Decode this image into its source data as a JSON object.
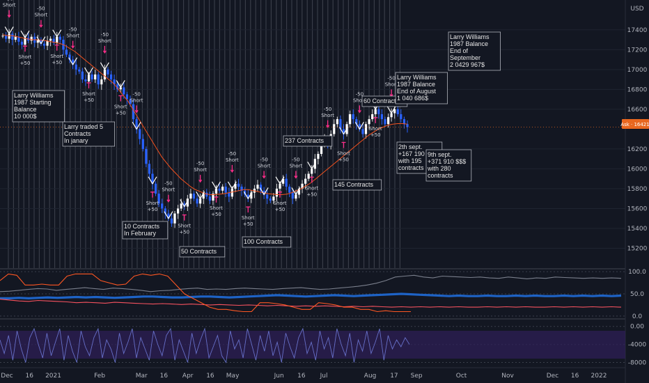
{
  "chart_data": [
    {
      "type": "line",
      "pane": "price",
      "title": "",
      "ylim": [
        15000,
        17700
      ],
      "y_ticks": [
        "17400",
        "17200",
        "17000",
        "16800",
        "16600",
        "16200",
        "16000",
        "15800",
        "15600",
        "15400",
        "15200"
      ],
      "y_top_label": "USD",
      "price_label": "Ask · 16421",
      "x_ticks": [
        "Dec",
        "16",
        "2021",
        "Feb",
        "Mar",
        "16",
        "Apr",
        "16",
        "May",
        "Jun",
        "16",
        "Jul",
        "Aug",
        "17",
        "Sep",
        "Oct",
        "Nov",
        "Dec",
        "16",
        "2022"
      ],
      "x_tick_days": [
        0,
        15,
        31,
        62,
        90,
        105,
        121,
        136,
        151,
        182,
        197,
        212,
        243,
        259,
        274,
        304,
        335,
        365,
        380,
        396
      ],
      "series": [
        {
          "values": [
            17340,
            17310,
            17360,
            17300,
            17330,
            17280,
            17250,
            17320,
            17290,
            17330,
            17270,
            17300,
            17260,
            17240,
            17290,
            17310,
            17270,
            17330,
            17300,
            17200,
            17150,
            17100,
            17050,
            17000,
            16980,
            16900,
            16880,
            16950,
            16900,
            16950,
            16850,
            16900,
            17000,
            16950,
            16900,
            16850,
            16800,
            16820,
            16750,
            16700,
            16650,
            16500,
            16400,
            16300,
            16200,
            16050,
            15950,
            15850,
            15750,
            15650,
            15600,
            15550,
            15500,
            15450,
            15550,
            15600,
            15650,
            15620,
            15700,
            15750,
            15700,
            15650,
            15700,
            15760,
            15720,
            15680,
            15750,
            15800,
            15780,
            15820,
            15760,
            15720,
            15800,
            15850,
            15820,
            15780,
            15740,
            15700,
            15760,
            15800,
            15840,
            15780,
            15740,
            15700,
            15680,
            15720,
            15800,
            15850,
            15900,
            15820,
            15760,
            15700,
            15740,
            15800,
            15850,
            15900,
            15950,
            16000,
            16100,
            16150,
            16250,
            16300,
            16250,
            16350,
            16450,
            16500,
            16400,
            16350,
            16450,
            16550,
            16500,
            16450,
            16400,
            16350,
            16450,
            16500,
            16550,
            16600,
            16550,
            16500,
            16450,
            16520,
            16560,
            16600,
            16550,
            16500,
            16450,
            16420
          ]
        },
        {
          "name": "",
          "values": [
            17350,
            17340,
            17340,
            17330,
            17320,
            17310,
            17300,
            17300,
            17295,
            17290,
            17280,
            17270,
            17260,
            17240,
            17210,
            17180,
            17140,
            17100,
            17060,
            17020,
            16980,
            16940,
            16900,
            16860,
            16800,
            16740,
            16680,
            16600,
            16520,
            16440,
            16360,
            16280,
            16200,
            16120,
            16060,
            16000,
            15950,
            15900,
            15860,
            15820,
            15790,
            15770,
            15750,
            15740,
            15740,
            15745,
            15750,
            15760,
            15770,
            15780,
            15790,
            15790,
            15780,
            15770,
            15760,
            15750,
            15745,
            15740,
            15740,
            15745,
            15760,
            15780,
            15800,
            15830,
            15860,
            15900,
            15940,
            15980,
            16020,
            16060,
            16100,
            16140,
            16180,
            16220,
            16260,
            16300,
            16340,
            16370,
            16400,
            16420,
            16440,
            16450,
            16455,
            16455,
            16450
          ]
        }
      ],
      "annotations": [
        [
          "Larry Williams",
          "1987 Starting",
          "Balance",
          "10 000$"
        ],
        [
          "Larry traded 5",
          "Contracts",
          "In janary"
        ],
        [
          "10 Contracts",
          "In February"
        ],
        [
          "50 Contracts"
        ],
        [
          "100 Contracts"
        ],
        [
          "237 Contracts"
        ],
        [
          "145 Contracts"
        ],
        [
          "60 Contracts"
        ],
        [
          "Larry Williams",
          "1987 Balance",
          "End of August",
          "1 040 686$"
        ],
        [
          "2th sept.",
          "+167 190 $$$",
          "with 195",
          "contracts"
        ],
        [
          "9th sept.",
          "+371 910 $$$",
          "with 280",
          "contracts"
        ],
        [
          "Larry Williams",
          "1987 Balance",
          "End of",
          "September",
          "2 0429 967$"
        ]
      ],
      "signal_labels": [
        "-50",
        "Short",
        "+50",
        "Short"
      ]
    },
    {
      "type": "line",
      "pane": "oscillator",
      "ylim": [
        -5,
        105
      ],
      "y_ticks": [
        "100.0",
        "50.0",
        "0.0"
      ],
      "series": [
        {
          "color": "#1e63c6",
          "values": [
            40,
            40,
            41,
            40,
            41,
            42,
            41,
            42,
            43,
            42,
            43,
            42,
            41,
            42,
            43,
            44,
            44,
            43,
            42,
            42,
            43,
            44,
            44,
            43,
            42,
            43,
            44,
            45,
            46,
            47,
            46,
            45,
            44,
            45,
            46,
            47,
            46,
            45,
            46,
            47,
            48,
            49,
            50,
            49,
            48,
            47,
            46,
            45,
            46,
            45,
            45,
            46,
            45,
            45,
            46,
            45,
            46,
            45,
            45,
            46,
            45,
            46,
            45,
            46,
            45,
            46
          ]
        },
        {
          "color": "#7a7f8c",
          "values": [
            55,
            56,
            58,
            60,
            62,
            61,
            58,
            60,
            62,
            64,
            62,
            60,
            63,
            62,
            60,
            58,
            55,
            57,
            58,
            60,
            62,
            63,
            60,
            61,
            60,
            62,
            63,
            62,
            61,
            60,
            62,
            63,
            64,
            62,
            60,
            61,
            63,
            65,
            67,
            70,
            74,
            80,
            88,
            90,
            92,
            88,
            86,
            90,
            89,
            88,
            87,
            88,
            86,
            85,
            88,
            86,
            84,
            86,
            85,
            88,
            87,
            86,
            85,
            86,
            85,
            86,
            85
          ]
        },
        {
          "color": "#f7525f",
          "values": [
            38,
            36,
            34,
            33,
            35,
            34,
            33,
            32,
            30,
            31,
            30,
            29,
            31,
            30,
            29,
            28,
            27,
            28,
            27,
            26,
            27,
            26,
            25,
            26,
            25,
            24,
            25,
            24,
            23,
            24,
            23,
            22,
            23,
            22,
            23,
            22,
            21,
            22,
            21,
            22,
            21,
            20,
            21,
            20,
            21,
            20,
            21,
            20,
            21,
            20,
            20,
            21,
            20,
            21,
            20,
            21,
            20,
            20,
            21,
            20,
            21,
            20,
            21,
            20,
            21,
            20
          ]
        },
        {
          "color": "#ff5722",
          "values": [
            80,
            95,
            92,
            70,
            70,
            72,
            70,
            70,
            90,
            95,
            95,
            95,
            80,
            75,
            70,
            72,
            90,
            95,
            92,
            95,
            90,
            70,
            50,
            40,
            30,
            20,
            15,
            15,
            12,
            10,
            10,
            30,
            30,
            28,
            25,
            20,
            15,
            15,
            30,
            28,
            25,
            20,
            20,
            15,
            15,
            10,
            12,
            10,
            10,
            10
          ]
        }
      ]
    },
    {
      "type": "line",
      "pane": "momentum",
      "ylim": [
        -9000,
        1500
      ],
      "y_ticks": [
        "0.00",
        "-4000",
        "-8000"
      ],
      "series": [
        {
          "color": "#6770c9",
          "values": [
            -3000,
            -6000,
            -2000,
            -7500,
            -1000,
            -5000,
            -8000,
            -2500,
            -500,
            -4000,
            -7000,
            -1500,
            -6500,
            -3500,
            -500,
            -7500,
            -2000,
            -5500,
            -8000,
            -1000,
            -4500,
            -6500,
            -2500,
            -500,
            -7000,
            -3000,
            -5000,
            -8000,
            -1500,
            -6000,
            -3500,
            -500,
            -7000,
            -2500,
            -5000,
            -7500,
            -1000,
            -4000,
            -6500,
            -2000,
            -500,
            -7500,
            -3000,
            -5500,
            -8000,
            -1500,
            -6000,
            -3000,
            -500,
            -7000,
            -4500,
            -2000,
            -6500,
            -8000,
            -1000,
            -5000,
            -3000,
            -7000,
            -500,
            -4000,
            -7500,
            -2000,
            -5500,
            -1000,
            -6500,
            -3500,
            -8000,
            -1500,
            -4500,
            -7000,
            -2500,
            -500,
            -6000,
            -3500,
            -7500,
            -1000,
            -5000,
            -2500,
            -7000,
            -500,
            -4000,
            -6500,
            -1500,
            -8000,
            -3000,
            -5500,
            -1000,
            -6000,
            -3500,
            -500,
            -7500,
            -2000,
            -5000,
            -3000,
            -4500,
            -2500,
            -4000
          ]
        }
      ]
    }
  ]
}
